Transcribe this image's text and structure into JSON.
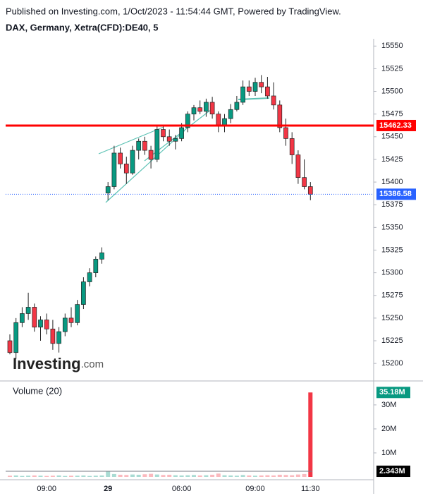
{
  "chart_data": {
    "type": "candlestick",
    "title": "Published on Investing.com, 1/Oct/2023 - 11:54:44 GMT, Powered by TradingView.",
    "subtitle": "DAX, Germany, Xetra(CFD):DE40, 5",
    "watermark": [
      "Investing",
      ".com"
    ],
    "categories": [
      null,
      null,
      null,
      null,
      null,
      null,
      "09:00",
      null,
      null,
      null,
      null,
      null,
      null,
      null,
      null,
      null,
      "29",
      null,
      null,
      null,
      null,
      null,
      null,
      null,
      null,
      null,
      null,
      null,
      "06:00",
      null,
      null,
      null,
      null,
      null,
      null,
      null,
      null,
      null,
      null,
      null,
      "09:00",
      null,
      null,
      null,
      null,
      null,
      null,
      null,
      null,
      "11:30"
    ],
    "open": [
      15225,
      15212,
      15245,
      15255,
      15262,
      15240,
      15248,
      15238,
      15222,
      15235,
      15250,
      15245,
      15265,
      15290,
      15300,
      15315,
      15388,
      15395,
      15432,
      15420,
      15410,
      15435,
      15445,
      15435,
      15425,
      15458,
      15450,
      15445,
      15448,
      15460,
      15475,
      15482,
      15478,
      15488,
      15475,
      15462,
      15470,
      15480,
      15488,
      15505,
      15500,
      15510,
      15505,
      15495,
      15485,
      15460,
      15448,
      15430,
      15405,
      15395
    ],
    "high": [
      15232,
      15250,
      15262,
      15278,
      15266,
      15252,
      15255,
      15248,
      15240,
      15255,
      15262,
      15270,
      15295,
      15305,
      15318,
      15328,
      15400,
      15440,
      15438,
      15428,
      15440,
      15448,
      15450,
      15440,
      15462,
      15463,
      15458,
      15452,
      15465,
      15478,
      15485,
      15490,
      15492,
      15494,
      15478,
      15475,
      15486,
      15495,
      15512,
      15512,
      15515,
      15518,
      15516,
      15510,
      15490,
      15470,
      15455,
      15435,
      15425,
      15400
    ],
    "low": [
      15210,
      15205,
      15240,
      15248,
      15235,
      15225,
      15232,
      15215,
      15212,
      15230,
      15240,
      15242,
      15260,
      15285,
      15295,
      15310,
      15380,
      15392,
      15415,
      15398,
      15408,
      15425,
      15430,
      15415,
      15422,
      15445,
      15440,
      15436,
      15445,
      15455,
      15468,
      15475,
      15472,
      15470,
      15455,
      15455,
      15465,
      15478,
      15485,
      15495,
      15495,
      15498,
      15492,
      15480,
      15455,
      15440,
      15420,
      15398,
      15392,
      15380
    ],
    "close": [
      15212,
      15245,
      15255,
      15262,
      15240,
      15248,
      15238,
      15222,
      15235,
      15250,
      15245,
      15265,
      15290,
      15300,
      15315,
      15322,
      15395,
      15432,
      15420,
      15410,
      15435,
      15445,
      15435,
      15425,
      15458,
      15450,
      15445,
      15448,
      15460,
      15475,
      15482,
      15478,
      15488,
      15475,
      15462,
      15470,
      15480,
      15488,
      15505,
      15500,
      15510,
      15505,
      15495,
      15485,
      15460,
      15448,
      15430,
      15405,
      15395,
      15386.58
    ],
    "up_color": "#089981",
    "down_color": "#f23645",
    "ylim": [
      15183,
      15558
    ],
    "yticks": [
      15200,
      15225,
      15250,
      15275,
      15300,
      15325,
      15350,
      15375,
      15400,
      15425,
      15450,
      15475,
      15500,
      15525,
      15550
    ],
    "hline": {
      "value": 15462.33,
      "color": "#ff0000"
    },
    "last_price": {
      "value": 15386.58,
      "color": "#2962ff"
    },
    "volume": {
      "label": "Volume (20)",
      "values": [
        0.5,
        0.6,
        0.4,
        0.5,
        0.6,
        0.5,
        0.4,
        0.5,
        0.6,
        0.4,
        0.5,
        0.5,
        0.6,
        0.4,
        0.5,
        0.6,
        2.4,
        1.2,
        0.9,
        0.8,
        1.0,
        0.9,
        1.1,
        1.3,
        1.0,
        0.8,
        0.9,
        0.7,
        0.6,
        0.7,
        0.8,
        0.6,
        0.7,
        0.9,
        1.4,
        0.7,
        0.6,
        0.5,
        0.8,
        0.6,
        0.5,
        0.6,
        0.7,
        0.6,
        0.9,
        0.8,
        0.7,
        1.0,
        1.2,
        35.18
      ],
      "last_label": "35.18M",
      "ma": {
        "value": 2.343,
        "label": "2.343M"
      },
      "ylim": [
        0,
        38.5
      ],
      "yticks": [
        {
          "value": 10,
          "label": "10M"
        },
        {
          "value": 20,
          "label": "20M"
        },
        {
          "value": 30,
          "label": "30M"
        }
      ]
    }
  }
}
